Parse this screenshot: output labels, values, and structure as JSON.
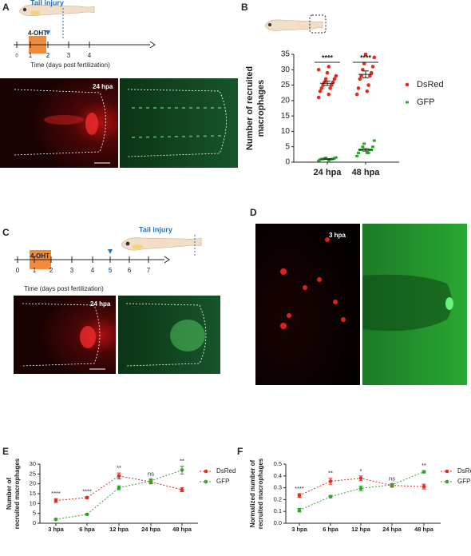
{
  "panel_a": {
    "label": "A",
    "injury": "Tail injury",
    "treatment": "4-OHT",
    "timeline_ticks": [
      "0",
      "1",
      "2",
      "3",
      "4"
    ],
    "timeline_label": "Time (days post fertilization)",
    "image_label": "24 hpa"
  },
  "panel_c": {
    "label": "C",
    "injury": "Tail injury",
    "treatment": "4-OHT",
    "timeline_ticks": [
      "0",
      "1",
      "2",
      "3",
      "4",
      "5",
      "6",
      "7"
    ],
    "timeline_label": "Time (days post fertilization)",
    "image_label": "24 hpa"
  },
  "panel_d": {
    "label": "D",
    "image_label": "3 hpa"
  },
  "chart_data": [
    {
      "type": "dot",
      "panel": "B",
      "ylabel": [
        "Number of recruited",
        "macrophages"
      ],
      "categories": [
        "24 hpa",
        "48 hpa"
      ],
      "ylim": [
        0,
        35
      ],
      "yticks": [
        0,
        5,
        10,
        15,
        20,
        25,
        30,
        35
      ],
      "significance": [
        "****",
        "****"
      ],
      "series": [
        {
          "name": "DsRed",
          "color": "#e8291c",
          "values": [
            [
              21,
              22,
              23,
              24,
              24,
              25,
              25,
              26,
              26,
              27,
              27,
              28,
              29,
              30,
              31
            ],
            [
              22,
              23,
              24,
              25,
              27,
              28,
              28,
              29,
              30,
              31,
              32,
              34,
              35
            ]
          ],
          "mean": [
            25.6,
            28.5
          ],
          "sem": [
            0.7,
            1.1
          ]
        },
        {
          "name": "GFP",
          "color": "#2fa52a",
          "values": [
            [
              0.5,
              0.6,
              0.8,
              0.9,
              1,
              1,
              1,
              1.1,
              1.2,
              1.3,
              1.4,
              1.5
            ],
            [
              2,
              3,
              3,
              3,
              4,
              4,
              4,
              4,
              5,
              5,
              6,
              7
            ]
          ],
          "mean": [
            1,
            4
          ],
          "sem": [
            0.1,
            0.4
          ]
        }
      ]
    },
    {
      "type": "line",
      "panel": "E",
      "ylabel": [
        "Number of",
        "recruited macrophages"
      ],
      "categories": [
        "3 hpa",
        "6 hpa",
        "12 hpa",
        "24 hpa",
        "48 hpa"
      ],
      "ylim": [
        0,
        30
      ],
      "yticks": [
        0,
        5,
        10,
        15,
        20,
        25,
        30
      ],
      "significance": [
        "****",
        "****",
        "**",
        "ns",
        "**"
      ],
      "series": [
        {
          "name": "DsRed",
          "color": "#e8291c",
          "values": [
            11.5,
            13,
            24,
            21,
            17
          ],
          "errors": [
            1,
            0.5,
            1.5,
            1,
            1
          ]
        },
        {
          "name": "GFP",
          "color": "#2fa52a",
          "values": [
            2,
            4.5,
            18,
            21.5,
            27
          ],
          "errors": [
            0.3,
            0.3,
            1,
            1,
            2
          ]
        }
      ]
    },
    {
      "type": "line",
      "panel": "F",
      "ylabel": [
        "Normalized number of",
        "recruited macrophages"
      ],
      "categories": [
        "3 hpa",
        "6 hpa",
        "12 hpa",
        "24 hpa",
        "48 hpa"
      ],
      "ylim": [
        0,
        0.5
      ],
      "yticks": [
        {
          "value": 0,
          "label": "0.0"
        },
        0.1,
        0.2,
        0.3,
        0.4,
        0.5
      ],
      "significance": [
        "****",
        "**",
        "*",
        "ns",
        "**"
      ],
      "series": [
        {
          "name": "DsRed",
          "color": "#e8291c",
          "values": [
            0.235,
            0.355,
            0.38,
            0.32,
            0.31
          ],
          "errors": [
            0.015,
            0.025,
            0.02,
            0.015,
            0.02
          ]
        },
        {
          "name": "GFP",
          "color": "#2fa52a",
          "values": [
            0.11,
            0.225,
            0.295,
            0.325,
            0.435
          ],
          "errors": [
            0.015,
            0.01,
            0.02,
            0.01,
            0.01
          ]
        }
      ]
    }
  ]
}
